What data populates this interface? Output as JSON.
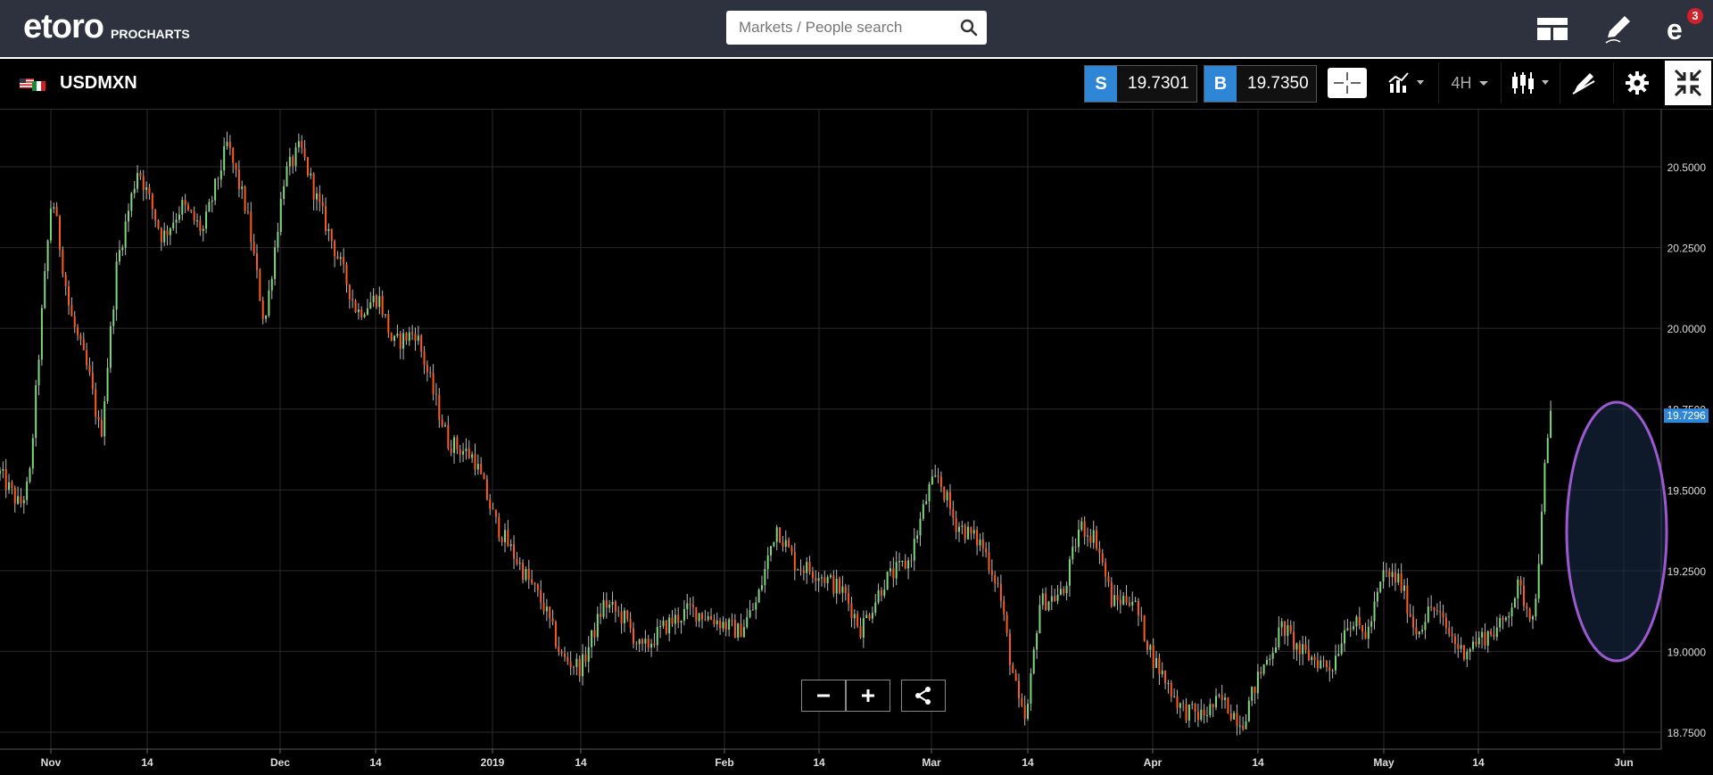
{
  "app": {
    "logo": "etoro",
    "logo_sub": "PROCHARTS"
  },
  "search": {
    "placeholder": "Markets / People search"
  },
  "header": {
    "notifications": "3"
  },
  "instrument": {
    "symbol": "USDMXN",
    "sell_label": "S",
    "sell_price": "19.7301",
    "buy_label": "B",
    "buy_price": "19.7350",
    "timeframe": "4H"
  },
  "colors": {
    "up": "#7ed87e",
    "down": "#ff5a1f",
    "accent": "#2f86d6",
    "ellipse": "#9b59d0"
  },
  "chart_data": {
    "type": "candlestick",
    "symbol": "USDMXN",
    "interval": "4H",
    "ylim": [
      18.7,
      20.7
    ],
    "y_ticks": [
      "20.5000",
      "20.2500",
      "20.0000",
      "19.7500",
      "19.5000",
      "19.2500",
      "19.0000",
      "18.7500"
    ],
    "x_ticks": [
      "Nov",
      "14",
      "Dec",
      "14",
      "2019",
      "14",
      "Feb",
      "14",
      "Mar",
      "14",
      "Apr",
      "14",
      "May",
      "14",
      "Jun"
    ],
    "last_price_label": "19.7296",
    "last_price": 19.7296,
    "path": [
      [
        0,
        19.55
      ],
      [
        0.012,
        19.45
      ],
      [
        0.018,
        19.52
      ],
      [
        0.026,
        20.06
      ],
      [
        0.032,
        20.42
      ],
      [
        0.043,
        20.05
      ],
      [
        0.055,
        19.85
      ],
      [
        0.062,
        19.66
      ],
      [
        0.072,
        20.2
      ],
      [
        0.085,
        20.5
      ],
      [
        0.1,
        20.28
      ],
      [
        0.112,
        20.38
      ],
      [
        0.125,
        20.3
      ],
      [
        0.14,
        20.57
      ],
      [
        0.152,
        20.36
      ],
      [
        0.163,
        20.01
      ],
      [
        0.175,
        20.47
      ],
      [
        0.185,
        20.56
      ],
      [
        0.195,
        20.4
      ],
      [
        0.208,
        20.22
      ],
      [
        0.22,
        20.05
      ],
      [
        0.233,
        20.1
      ],
      [
        0.242,
        19.95
      ],
      [
        0.256,
        19.99
      ],
      [
        0.268,
        19.78
      ],
      [
        0.276,
        19.65
      ],
      [
        0.292,
        19.6
      ],
      [
        0.305,
        19.4
      ],
      [
        0.322,
        19.25
      ],
      [
        0.335,
        19.14
      ],
      [
        0.346,
        18.98
      ],
      [
        0.358,
        18.95
      ],
      [
        0.372,
        19.15
      ],
      [
        0.385,
        19.1
      ],
      [
        0.395,
        19.0
      ],
      [
        0.41,
        19.08
      ],
      [
        0.425,
        19.13
      ],
      [
        0.44,
        19.1
      ],
      [
        0.455,
        19.06
      ],
      [
        0.466,
        19.15
      ],
      [
        0.478,
        19.39
      ],
      [
        0.49,
        19.27
      ],
      [
        0.505,
        19.24
      ],
      [
        0.52,
        19.18
      ],
      [
        0.53,
        19.07
      ],
      [
        0.545,
        19.22
      ],
      [
        0.56,
        19.28
      ],
      [
        0.572,
        19.5
      ],
      [
        0.578,
        19.54
      ],
      [
        0.588,
        19.4
      ],
      [
        0.605,
        19.33
      ],
      [
        0.615,
        19.2
      ],
      [
        0.622,
        18.98
      ],
      [
        0.628,
        18.82
      ],
      [
        0.632,
        18.78
      ],
      [
        0.64,
        19.15
      ],
      [
        0.655,
        19.18
      ],
      [
        0.665,
        19.39
      ],
      [
        0.675,
        19.35
      ],
      [
        0.685,
        19.15
      ],
      [
        0.697,
        19.17
      ],
      [
        0.71,
        18.98
      ],
      [
        0.728,
        18.82
      ],
      [
        0.74,
        18.8
      ],
      [
        0.752,
        18.85
      ],
      [
        0.765,
        18.78
      ],
      [
        0.775,
        18.92
      ],
      [
        0.79,
        19.08
      ],
      [
        0.8,
        19.0
      ],
      [
        0.812,
        18.97
      ],
      [
        0.82,
        18.95
      ],
      [
        0.83,
        19.1
      ],
      [
        0.842,
        19.05
      ],
      [
        0.852,
        19.24
      ],
      [
        0.862,
        19.22
      ],
      [
        0.872,
        19.06
      ],
      [
        0.882,
        19.14
      ],
      [
        0.892,
        19.06
      ],
      [
        0.9,
        19.0
      ],
      [
        0.912,
        19.04
      ],
      [
        0.925,
        19.08
      ],
      [
        0.935,
        19.2
      ],
      [
        0.942,
        19.12
      ],
      [
        0.946,
        19.15
      ],
      [
        0.95,
        19.5
      ],
      [
        0.955,
        19.73
      ]
    ]
  }
}
